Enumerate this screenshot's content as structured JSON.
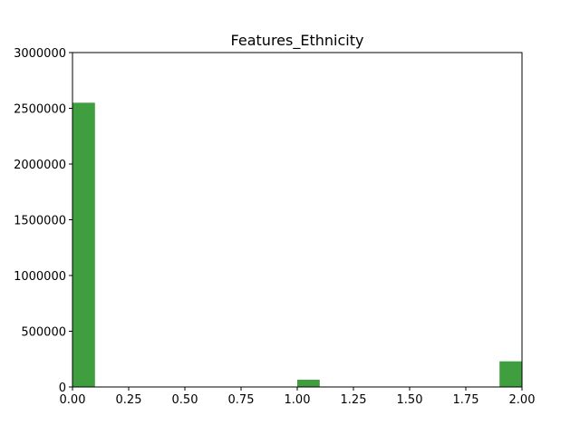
{
  "chart_data": {
    "type": "bar",
    "title": "Features_Ethnicity",
    "xlabel": "",
    "ylabel": "",
    "xlim": [
      0,
      2
    ],
    "ylim": [
      0,
      3000000
    ],
    "x_ticks": [
      "0.00",
      "0.25",
      "0.50",
      "0.75",
      "1.00",
      "1.25",
      "1.50",
      "1.75",
      "2.00"
    ],
    "y_ticks": [
      "0",
      "500000",
      "1000000",
      "1500000",
      "2000000",
      "2500000",
      "3000000"
    ],
    "bin_width": 0.1,
    "bins": [
      {
        "x_start": 0.0,
        "x_end": 0.1,
        "value": 2550000
      },
      {
        "x_start": 1.0,
        "x_end": 1.1,
        "value": 65000
      },
      {
        "x_start": 1.9,
        "x_end": 2.0,
        "value": 230000
      }
    ],
    "bar_color": "#3f9f3f",
    "grid": false,
    "legend": "none"
  }
}
